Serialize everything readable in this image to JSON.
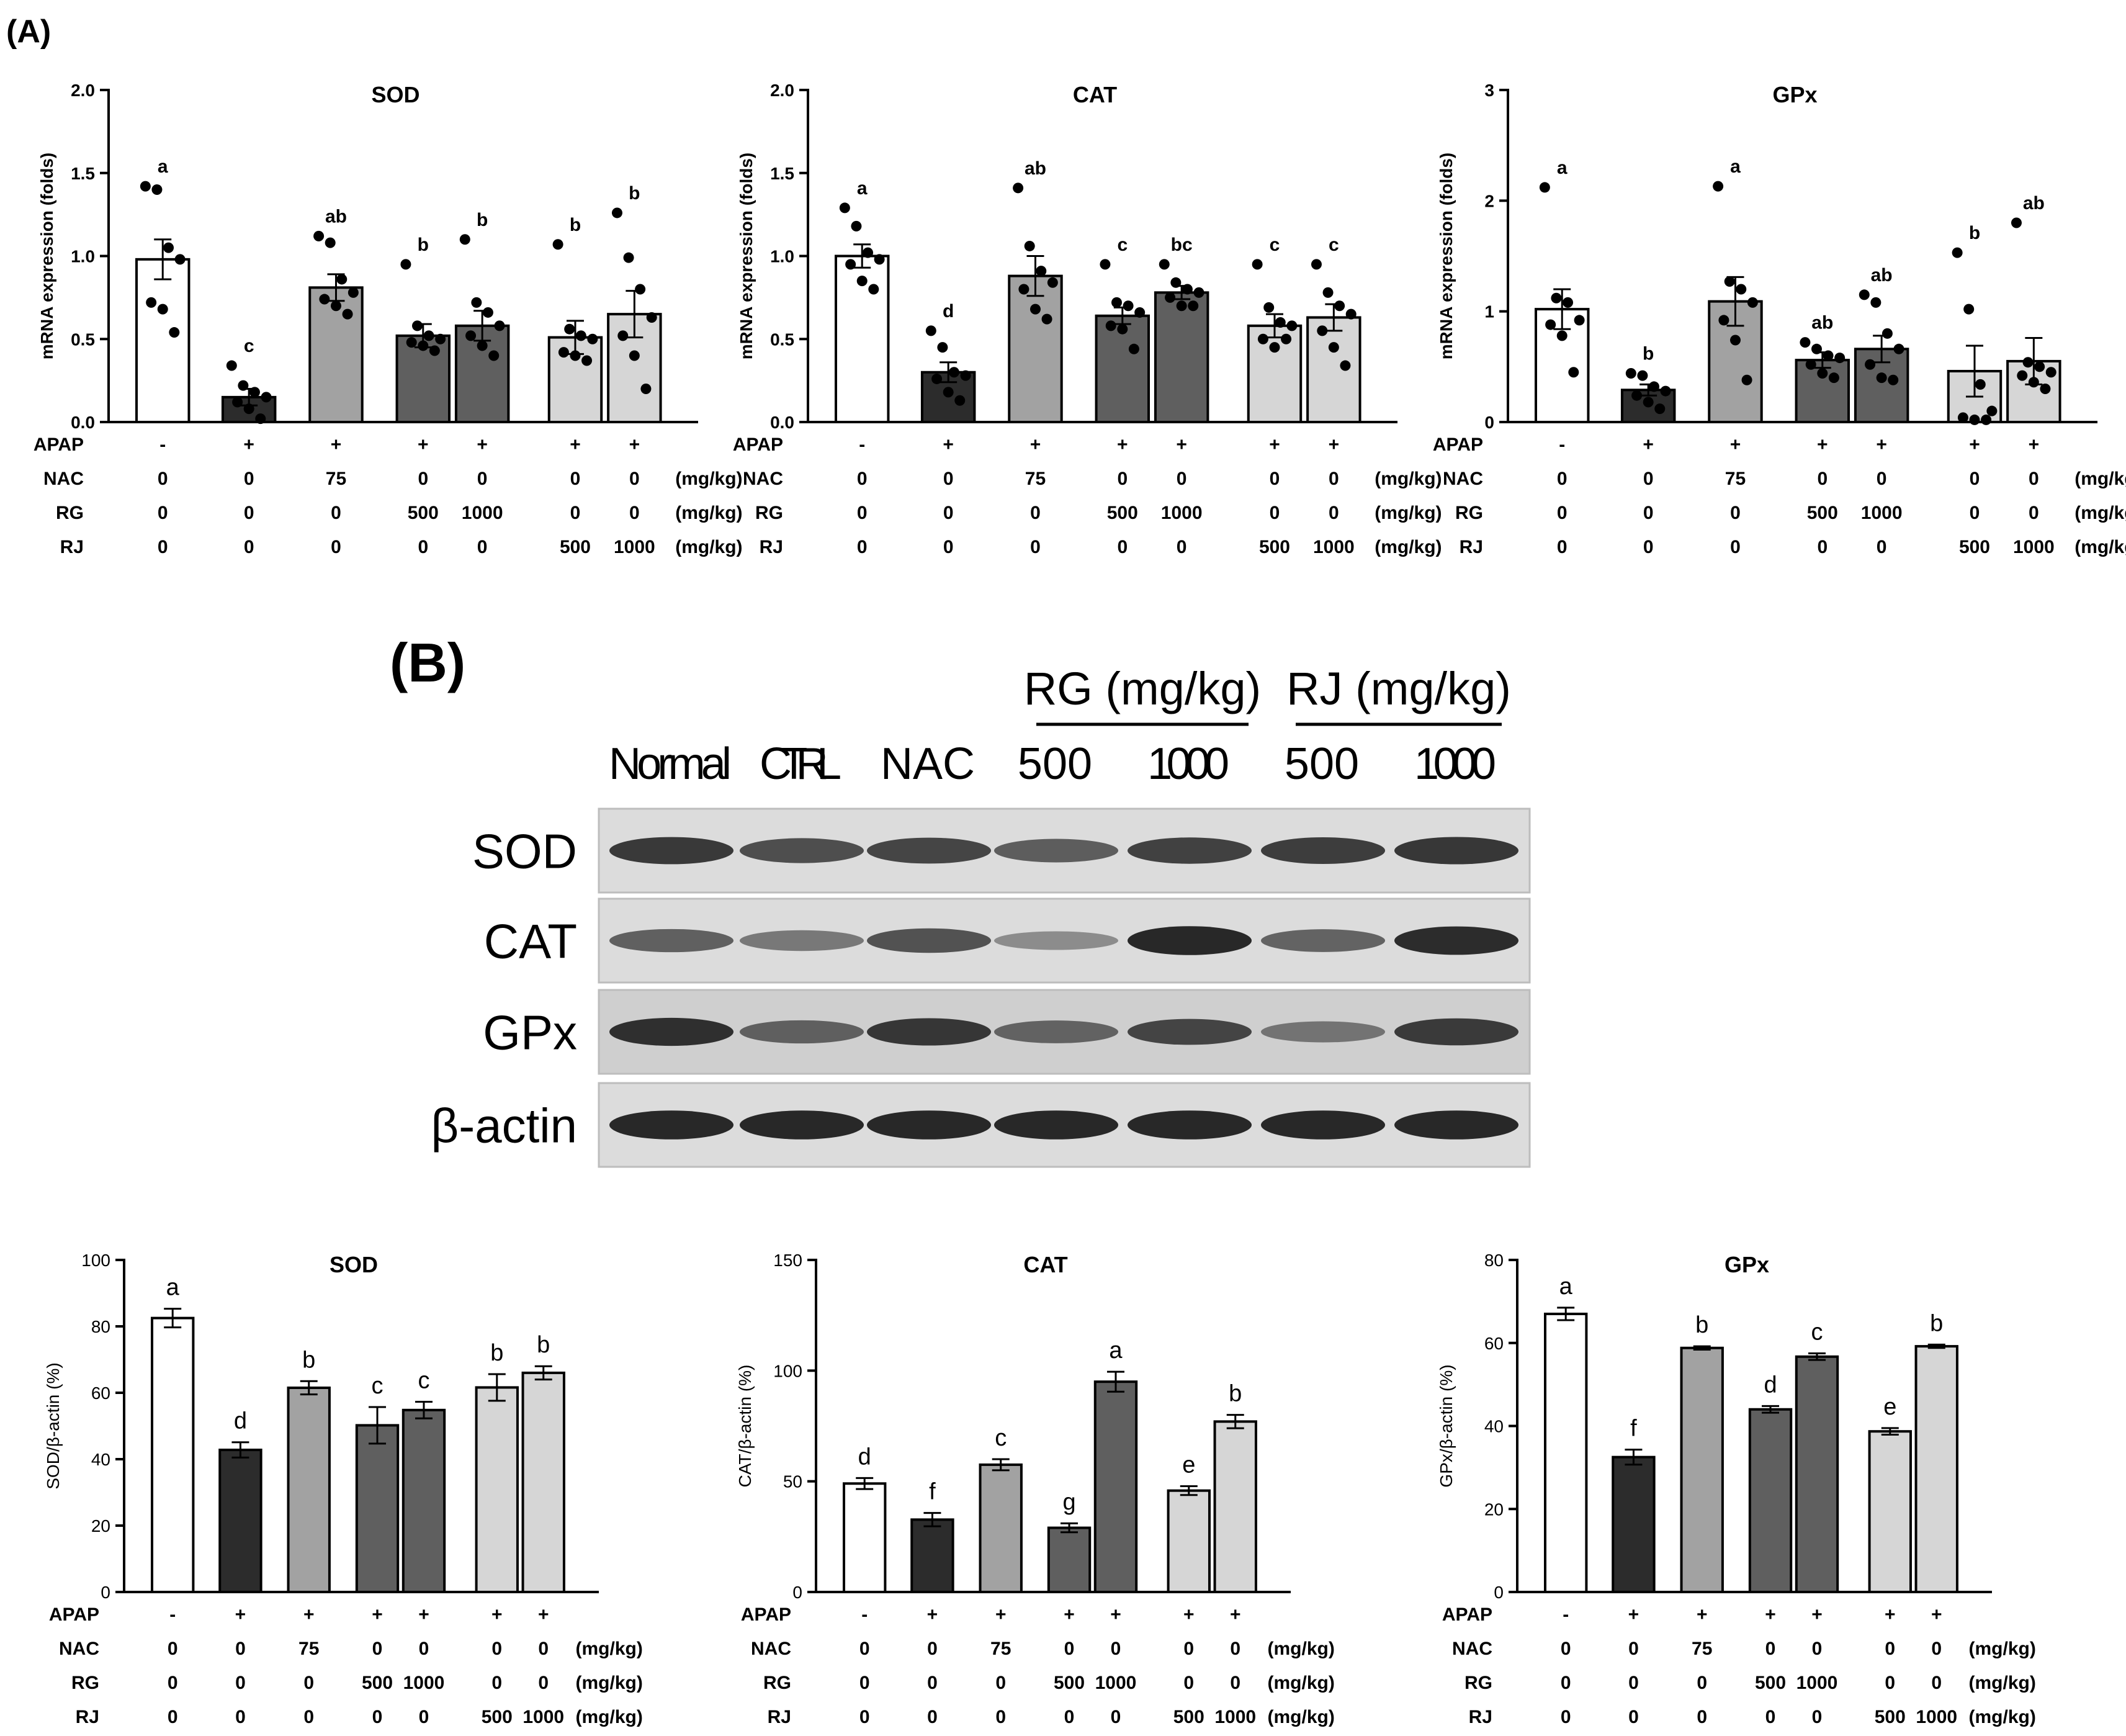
{
  "panel_labels": {
    "a": "(A)",
    "b": "(B)"
  },
  "colors": {
    "normal": "#ffffff",
    "ctrl": "#2c2c2c",
    "nac": "#a2a2a2",
    "rg": "#5f5f5f",
    "rj": "#d6d6d6"
  },
  "treatment_table": {
    "row_labels": [
      "APAP",
      "NAC",
      "RG",
      "RJ"
    ],
    "unit": "(mg/kg)",
    "rows": [
      [
        "-",
        "+",
        "+",
        "+",
        "+",
        "+",
        "+"
      ],
      [
        "0",
        "0",
        "75",
        "0",
        "0",
        "0",
        "0"
      ],
      [
        "0",
        "0",
        "0",
        "500",
        "1000",
        "0",
        "0"
      ],
      [
        "0",
        "0",
        "0",
        "0",
        "0",
        "500",
        "1000"
      ]
    ]
  },
  "western_blot": {
    "group_labels": [
      "RG (mg/kg)",
      "RJ (mg/kg)"
    ],
    "lane_labels": [
      "Normal",
      "CTRL",
      "NAC",
      "500",
      "1000",
      "500",
      "1000"
    ],
    "bands": [
      {
        "name": "SOD",
        "intensity": [
          0.85,
          0.72,
          0.78,
          0.64,
          0.8,
          0.82,
          0.86
        ]
      },
      {
        "name": "CAT",
        "intensity": [
          0.62,
          0.48,
          0.7,
          0.36,
          0.95,
          0.6,
          0.92
        ]
      },
      {
        "name": "GPx",
        "intensity": [
          0.9,
          0.62,
          0.86,
          0.6,
          0.78,
          0.5,
          0.84
        ]
      },
      {
        "name": "β-actin",
        "intensity": [
          0.95,
          0.95,
          0.95,
          0.95,
          0.95,
          0.95,
          0.95
        ]
      }
    ]
  },
  "chart_data": [
    {
      "type": "bar",
      "panel": "A",
      "title": "SOD",
      "ylabel": "mRNA expression (folds)",
      "ylim": [
        0,
        2.0
      ],
      "yticks": [
        "0.0",
        "0.5",
        "1.0",
        "1.5",
        "2.0"
      ],
      "values": [
        0.98,
        0.15,
        0.81,
        0.52,
        0.58,
        0.51,
        0.65
      ],
      "errors": [
        0.12,
        0.05,
        0.08,
        0.07,
        0.09,
        0.1,
        0.14
      ],
      "letters": [
        "a",
        "c",
        "ab",
        "b",
        "b",
        "b",
        "b"
      ],
      "points": [
        [
          1.42,
          1.4,
          1.05,
          0.98,
          0.72,
          0.68,
          0.54
        ],
        [
          0.34,
          0.22,
          0.18,
          0.15,
          0.12,
          0.08,
          0.02
        ],
        [
          1.12,
          1.08,
          0.86,
          0.78,
          0.74,
          0.7,
          0.65
        ],
        [
          0.95,
          0.58,
          0.52,
          0.5,
          0.48,
          0.46,
          0.43
        ],
        [
          1.1,
          0.72,
          0.66,
          0.58,
          0.52,
          0.46,
          0.4
        ],
        [
          1.07,
          0.56,
          0.52,
          0.5,
          0.42,
          0.4,
          0.37
        ],
        [
          1.26,
          0.99,
          0.8,
          0.63,
          0.52,
          0.4,
          0.2
        ]
      ]
    },
    {
      "type": "bar",
      "panel": "A",
      "title": "CAT",
      "ylabel": "mRNA expression (folds)",
      "ylim": [
        0,
        2.0
      ],
      "yticks": [
        "0.0",
        "0.5",
        "1.0",
        "1.5",
        "2.0"
      ],
      "values": [
        1.0,
        0.3,
        0.88,
        0.64,
        0.78,
        0.58,
        0.63
      ],
      "errors": [
        0.07,
        0.06,
        0.12,
        0.05,
        0.04,
        0.07,
        0.08
      ],
      "letters": [
        "a",
        "d",
        "ab",
        "c",
        "bc",
        "c",
        "c"
      ],
      "points": [
        [
          1.29,
          1.18,
          1.02,
          0.98,
          0.95,
          0.85,
          0.8
        ],
        [
          0.55,
          0.45,
          0.3,
          0.28,
          0.26,
          0.18,
          0.13
        ],
        [
          1.41,
          1.06,
          0.91,
          0.84,
          0.8,
          0.68,
          0.62
        ],
        [
          0.95,
          0.72,
          0.7,
          0.66,
          0.58,
          0.56,
          0.44
        ],
        [
          0.95,
          0.84,
          0.8,
          0.78,
          0.75,
          0.7,
          0.7
        ],
        [
          0.95,
          0.69,
          0.6,
          0.58,
          0.5,
          0.45,
          0.5
        ],
        [
          0.95,
          0.78,
          0.7,
          0.65,
          0.55,
          0.45,
          0.34
        ]
      ]
    },
    {
      "type": "bar",
      "panel": "A",
      "title": "GPx",
      "ylabel": "mRNA expression (folds)",
      "ylim": [
        0,
        3
      ],
      "yticks": [
        "0",
        "1",
        "2",
        "3"
      ],
      "values": [
        1.02,
        0.29,
        1.09,
        0.56,
        0.66,
        0.46,
        0.55
      ],
      "errors": [
        0.18,
        0.05,
        0.22,
        0.07,
        0.12,
        0.23,
        0.21
      ],
      "letters": [
        "a",
        "b",
        "a",
        "ab",
        "ab",
        "b",
        "ab"
      ],
      "points": [
        [
          2.12,
          1.12,
          1.08,
          0.92,
          0.88,
          0.78,
          0.45
        ],
        [
          0.44,
          0.42,
          0.32,
          0.28,
          0.24,
          0.18,
          0.12
        ],
        [
          2.13,
          1.27,
          1.2,
          1.08,
          0.92,
          0.74,
          0.38
        ],
        [
          0.72,
          0.66,
          0.6,
          0.58,
          0.52,
          0.44,
          0.4
        ],
        [
          1.15,
          1.08,
          0.8,
          0.66,
          0.52,
          0.4,
          0.38
        ],
        [
          1.53,
          1.02,
          0.34,
          0.1,
          0.04,
          0.02,
          0.02
        ],
        [
          1.8,
          0.54,
          0.5,
          0.45,
          0.42,
          0.36,
          0.3
        ]
      ]
    },
    {
      "type": "bar",
      "panel": "B",
      "title": "SOD",
      "ylabel": "SOD/β-actin (%)",
      "ylim": [
        0,
        100
      ],
      "yticks": [
        "0",
        "20",
        "40",
        "60",
        "80",
        "100"
      ],
      "values": [
        82.5,
        42.8,
        61.5,
        50.2,
        54.8,
        61.6,
        66.0
      ],
      "errors": [
        2.8,
        2.3,
        2.0,
        5.5,
        2.5,
        4.0,
        2.0
      ],
      "letters": [
        "a",
        "d",
        "b",
        "c",
        "c",
        "b",
        "b"
      ]
    },
    {
      "type": "bar",
      "panel": "B",
      "title": "CAT",
      "ylabel": "CAT/β-actin (%)",
      "ylim": [
        0,
        150
      ],
      "yticks": [
        "0",
        "50",
        "100",
        "150"
      ],
      "values": [
        49.0,
        32.7,
        57.5,
        29.0,
        95.0,
        45.8,
        77.0
      ],
      "errors": [
        2.5,
        3.0,
        2.5,
        2.0,
        4.5,
        2.0,
        3.0
      ],
      "letters": [
        "d",
        "f",
        "c",
        "g",
        "a",
        "e",
        "b"
      ]
    },
    {
      "type": "bar",
      "panel": "B",
      "title": "GPx",
      "ylabel": "GPx/β-actin (%)",
      "ylim": [
        0,
        80
      ],
      "yticks": [
        "0",
        "20",
        "40",
        "60",
        "80"
      ],
      "values": [
        67.0,
        32.5,
        58.8,
        44.0,
        56.7,
        38.7,
        59.2
      ],
      "errors": [
        1.5,
        1.8,
        0.4,
        0.8,
        0.8,
        0.8,
        0.4
      ],
      "letters": [
        "a",
        "f",
        "b",
        "d",
        "c",
        "e",
        "b"
      ]
    }
  ]
}
